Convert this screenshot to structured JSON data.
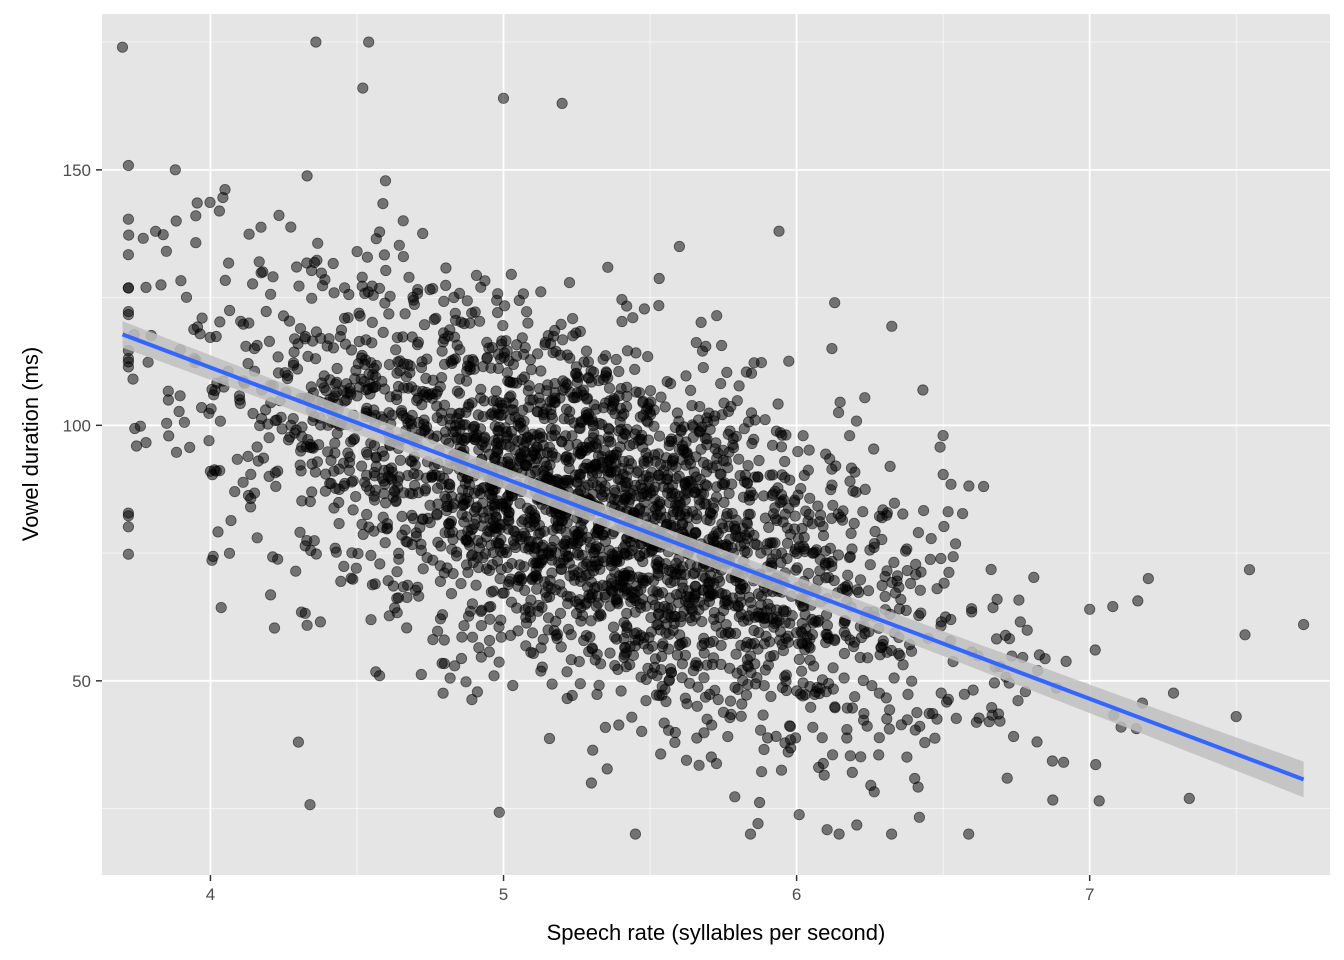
{
  "chart_data": {
    "type": "scatter",
    "title": "",
    "xlabel": "Speech rate (syllables per second)",
    "ylabel": "Vowel duration (ms)",
    "xlim": [
      3.63,
      7.82
    ],
    "ylim": [
      12.0,
      180.5
    ],
    "x_ticks": [
      4,
      5,
      6,
      7
    ],
    "x_tick_labels": [
      "4",
      "5",
      "6",
      "7"
    ],
    "x_minor_ticks": [
      3.5,
      4.5,
      5.5,
      6.5,
      7.5
    ],
    "y_ticks": [
      50,
      100,
      150
    ],
    "y_tick_labels": [
      "50",
      "100",
      "150"
    ],
    "y_minor_ticks": [
      25,
      75,
      125,
      175
    ],
    "grid": true,
    "legend": "none",
    "colors": {
      "panel": "#e5e5e5",
      "grid": "#ffffff",
      "point": "#000000",
      "point_alpha": 0.5,
      "fit_line": "#3366ff",
      "confidence_band": "#bfbfbf"
    },
    "series": [
      {
        "kind": "points",
        "description_count": 3000,
        "sample_points": [
          [
            3.7,
            174
          ],
          [
            3.78,
            127
          ],
          [
            3.88,
            150
          ],
          [
            3.95,
            141
          ],
          [
            4.0,
            91
          ],
          [
            4.1,
            105
          ],
          [
            4.2,
            90
          ],
          [
            4.3,
            38
          ],
          [
            4.36,
            175
          ],
          [
            4.54,
            175
          ],
          [
            4.52,
            166
          ],
          [
            5.0,
            164
          ],
          [
            5.2,
            163
          ],
          [
            5.3,
            30
          ],
          [
            5.45,
            20
          ],
          [
            5.6,
            135
          ],
          [
            5.94,
            138
          ],
          [
            6.13,
            124
          ],
          [
            6.5,
            98
          ],
          [
            7.0,
            64
          ],
          [
            7.2,
            70
          ],
          [
            7.34,
            27
          ],
          [
            7.53,
            59
          ],
          [
            7.73,
            61
          ],
          [
            7.5,
            43
          ]
        ]
      },
      {
        "kind": "fit",
        "method": "lm",
        "x": [
          3.7,
          7.73
        ],
        "y": [
          117.8,
          30.7
        ],
        "se_band_halfwidth": [
          2.6,
          3.5
        ]
      }
    ]
  }
}
